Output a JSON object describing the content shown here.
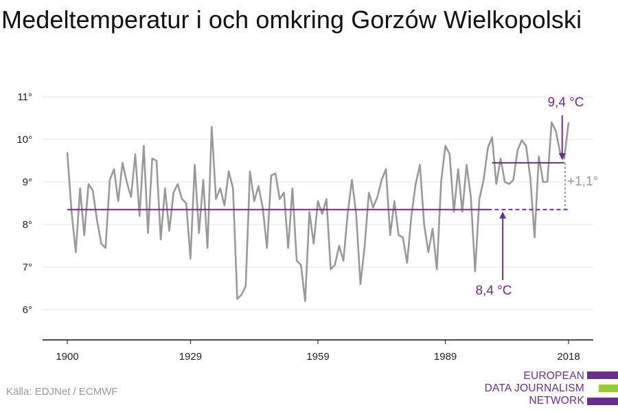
{
  "title": "Medeltemperatur i och omkring Gorzów Wielkopolski",
  "source": "Källa: EDJNet / ECMWF",
  "logo": {
    "lines": [
      "EUROPEAN",
      "DATA JOURNALISM",
      "NETWORK"
    ],
    "colors": {
      "purple": "#6a2c8e",
      "green": "#9acd32"
    }
  },
  "chart_data": {
    "type": "line",
    "title": "Medeltemperatur i och omkring Gorzów Wielkopolski",
    "xlabel": "",
    "ylabel": "",
    "xlim": [
      1900,
      2018
    ],
    "ylim": [
      5.3,
      11.3
    ],
    "x_ticks": [
      1900,
      1929,
      1959,
      1989,
      2018
    ],
    "x_tick_labels": [
      "1900",
      "1929",
      "1959",
      "1989",
      "2018"
    ],
    "y_ticks": [
      6,
      7,
      8,
      9,
      10,
      11
    ],
    "y_tick_labels": [
      "6°",
      "7°",
      "8°",
      "9°",
      "10°",
      "11°"
    ],
    "grid": "horizontal",
    "series": [
      {
        "color": "#999999",
        "x": [
          1900,
          1901,
          1902,
          1903,
          1904,
          1905,
          1906,
          1907,
          1908,
          1909,
          1910,
          1911,
          1912,
          1913,
          1914,
          1915,
          1916,
          1917,
          1918,
          1919,
          1920,
          1921,
          1922,
          1923,
          1924,
          1925,
          1926,
          1927,
          1928,
          1929,
          1930,
          1931,
          1932,
          1933,
          1934,
          1935,
          1936,
          1937,
          1938,
          1939,
          1940,
          1941,
          1942,
          1943,
          1944,
          1945,
          1946,
          1947,
          1948,
          1949,
          1950,
          1951,
          1952,
          1953,
          1954,
          1955,
          1956,
          1957,
          1958,
          1959,
          1960,
          1961,
          1962,
          1963,
          1964,
          1965,
          1966,
          1967,
          1968,
          1969,
          1970,
          1971,
          1972,
          1973,
          1974,
          1975,
          1976,
          1977,
          1978,
          1979,
          1980,
          1981,
          1982,
          1983,
          1984,
          1985,
          1986,
          1987,
          1988,
          1989,
          1990,
          1991,
          1992,
          1993,
          1994,
          1995,
          1996,
          1997,
          1998,
          1999,
          2000,
          2001,
          2002,
          2003,
          2004,
          2005,
          2006,
          2007,
          2008,
          2009,
          2010,
          2011,
          2012,
          2013,
          2014,
          2015,
          2016,
          2017,
          2018
        ],
        "y": [
          9.7,
          8.3,
          7.35,
          8.85,
          7.75,
          8.95,
          8.8,
          8.1,
          7.55,
          7.45,
          9.05,
          9.3,
          8.55,
          9.45,
          9.0,
          8.65,
          9.65,
          8.2,
          9.85,
          7.8,
          9.55,
          9.5,
          7.65,
          8.85,
          7.85,
          8.75,
          8.95,
          8.6,
          8.5,
          7.2,
          9.4,
          7.8,
          9.05,
          7.45,
          10.3,
          8.6,
          8.85,
          8.45,
          9.25,
          8.85,
          6.25,
          6.35,
          6.55,
          9.25,
          8.55,
          8.9,
          8.4,
          7.45,
          9.15,
          9.2,
          8.6,
          8.75,
          7.45,
          8.85,
          7.15,
          7.05,
          6.2,
          8.3,
          7.55,
          8.55,
          8.25,
          8.6,
          6.95,
          7.05,
          7.5,
          7.15,
          8.25,
          9.05,
          8.25,
          6.6,
          7.5,
          8.75,
          8.4,
          8.65,
          9.05,
          9.3,
          7.75,
          8.55,
          7.75,
          7.7,
          7.1,
          8.2,
          8.95,
          9.4,
          8.0,
          7.35,
          7.9,
          6.95,
          9.0,
          9.85,
          9.65,
          8.3,
          9.3,
          8.3,
          9.4,
          8.65,
          6.9,
          8.6,
          9.05,
          9.8,
          10.05,
          8.95,
          9.55,
          9.0,
          8.95,
          9.05,
          9.75,
          9.98,
          9.85,
          9.1,
          7.7,
          9.6,
          9.0,
          9.0,
          10.4,
          10.2,
          9.7,
          9.55,
          10.4
        ]
      }
    ],
    "reference_lines": [
      {
        "label": "8,4 °C",
        "value": 8.35,
        "x_start": 1900,
        "x_end": 2018,
        "dashed_from": 1999,
        "color": "#6a2c8e"
      },
      {
        "label": "9,4 °C",
        "value": 9.45,
        "x_start": 2000,
        "x_end": 2017,
        "color": "#6a2c8e"
      }
    ],
    "annotations": [
      {
        "text": "9,4 °C",
        "color": "#6a2c8e"
      },
      {
        "text": "8,4 °C",
        "color": "#6a2c8e"
      },
      {
        "text": "+1,1°",
        "color": "#999999"
      }
    ]
  }
}
